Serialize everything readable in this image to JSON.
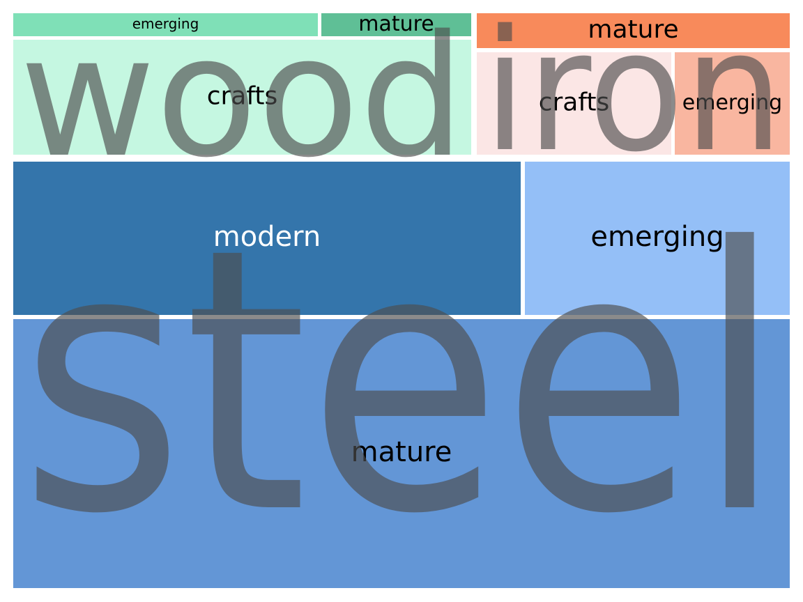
{
  "chart_data": {
    "type": "treemap",
    "groups": [
      {
        "name": "wood",
        "children": [
          {
            "name": "emerging",
            "value": 6,
            "color": "#7fe0b7",
            "label_color": "#000000"
          },
          {
            "name": "mature",
            "value": 3,
            "color": "#5fbf96",
            "label_color": "#000000"
          },
          {
            "name": "crafts",
            "value": 39,
            "color": "#c5f7e1",
            "label_color": "#000000"
          }
        ]
      },
      {
        "name": "iron",
        "children": [
          {
            "name": "mature",
            "value": 10,
            "color": "#f88a5b",
            "label_color": "#000000"
          },
          {
            "name": "crafts",
            "value": 23,
            "color": "#fbe6e5",
            "label_color": "#000000"
          },
          {
            "name": "emerging",
            "value": 12,
            "color": "#f9b6a0",
            "label_color": "#000000"
          }
        ]
      },
      {
        "name": "steel",
        "children": [
          {
            "name": "modern",
            "value": 126,
            "color": "#3475ab",
            "label_color": "#ffffff"
          },
          {
            "name": "emerging",
            "value": 59,
            "color": "#94bff7",
            "label_color": "#000000"
          },
          {
            "name": "mature",
            "value": 343,
            "color": "#6396d6",
            "label_color": "#000000"
          }
        ]
      }
    ],
    "overlay_color": "#4d4d4d"
  }
}
